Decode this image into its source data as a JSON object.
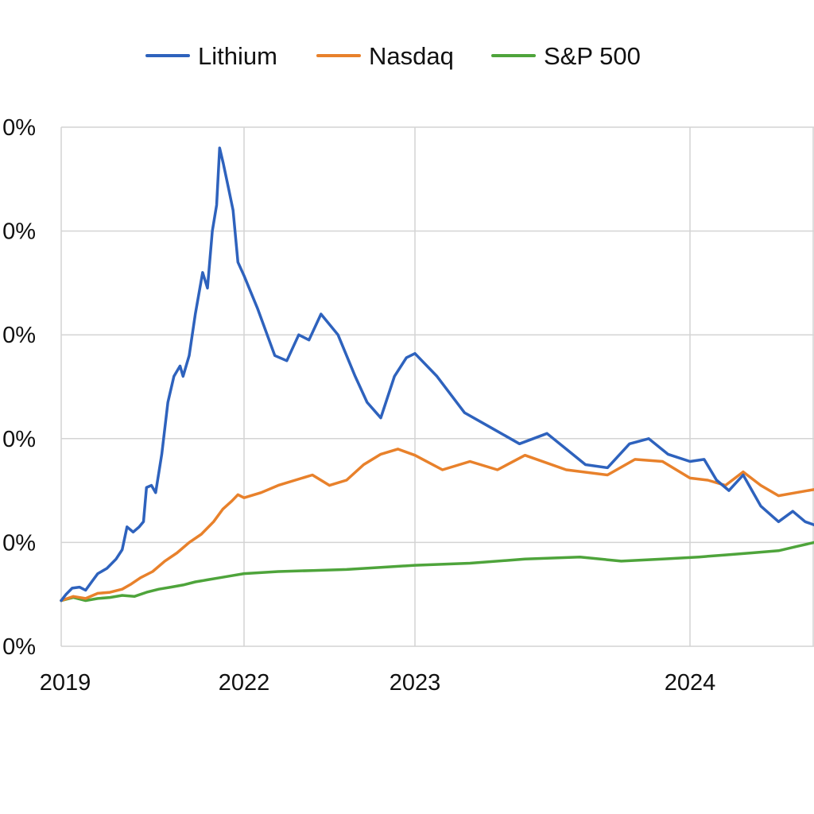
{
  "chart_data": {
    "type": "line",
    "title": "",
    "xlabel": "",
    "ylabel": "",
    "x_ticks": [
      "2019",
      "2022",
      "2023",
      "2024"
    ],
    "y_ticks": [
      "0%",
      "0%",
      "0%",
      "0%",
      "0%",
      "0%"
    ],
    "y_tick_values": [
      0,
      1,
      2,
      3,
      4,
      5
    ],
    "ylim": [
      0,
      5
    ],
    "xlim": [
      2019,
      2024.7
    ],
    "grid": true,
    "legend_position": "top-center",
    "series": [
      {
        "name": "Lithium",
        "color": "#2e62bd",
        "points": [
          [
            2019.0,
            0.44
          ],
          [
            2019.08,
            0.5
          ],
          [
            2019.18,
            0.56
          ],
          [
            2019.3,
            0.57
          ],
          [
            2019.4,
            0.54
          ],
          [
            2019.5,
            0.62
          ],
          [
            2019.6,
            0.7
          ],
          [
            2019.75,
            0.75
          ],
          [
            2019.9,
            0.84
          ],
          [
            2020.0,
            0.93
          ],
          [
            2020.08,
            1.15
          ],
          [
            2020.18,
            1.1
          ],
          [
            2020.28,
            1.15
          ],
          [
            2020.35,
            1.2
          ],
          [
            2020.4,
            1.53
          ],
          [
            2020.48,
            1.55
          ],
          [
            2020.55,
            1.48
          ],
          [
            2020.65,
            1.85
          ],
          [
            2020.75,
            2.35
          ],
          [
            2020.85,
            2.6
          ],
          [
            2020.95,
            2.7
          ],
          [
            2021.0,
            2.6
          ],
          [
            2021.1,
            2.8
          ],
          [
            2021.2,
            3.2
          ],
          [
            2021.32,
            3.6
          ],
          [
            2021.4,
            3.45
          ],
          [
            2021.48,
            4.0
          ],
          [
            2021.55,
            4.25
          ],
          [
            2021.6,
            4.8
          ],
          [
            2021.66,
            4.65
          ],
          [
            2021.75,
            4.4
          ],
          [
            2021.82,
            4.2
          ],
          [
            2021.9,
            3.7
          ],
          [
            2022.0,
            3.57
          ],
          [
            2022.08,
            3.25
          ],
          [
            2022.18,
            2.8
          ],
          [
            2022.25,
            2.75
          ],
          [
            2022.32,
            3.0
          ],
          [
            2022.38,
            2.95
          ],
          [
            2022.45,
            3.2
          ],
          [
            2022.55,
            3.0
          ],
          [
            2022.65,
            2.6
          ],
          [
            2022.72,
            2.35
          ],
          [
            2022.8,
            2.2
          ],
          [
            2022.88,
            2.6
          ],
          [
            2022.95,
            2.78
          ],
          [
            2023.0,
            2.82
          ],
          [
            2023.08,
            2.6
          ],
          [
            2023.18,
            2.25
          ],
          [
            2023.28,
            2.1
          ],
          [
            2023.38,
            1.95
          ],
          [
            2023.48,
            2.05
          ],
          [
            2023.55,
            1.9
          ],
          [
            2023.62,
            1.75
          ],
          [
            2023.7,
            1.72
          ],
          [
            2023.78,
            1.95
          ],
          [
            2023.85,
            2.0
          ],
          [
            2023.92,
            1.85
          ],
          [
            2024.0,
            1.78
          ],
          [
            2024.08,
            1.8
          ],
          [
            2024.15,
            1.6
          ],
          [
            2024.22,
            1.5
          ],
          [
            2024.3,
            1.65
          ],
          [
            2024.4,
            1.35
          ],
          [
            2024.5,
            1.2
          ],
          [
            2024.58,
            1.3
          ],
          [
            2024.65,
            1.2
          ],
          [
            2024.7,
            1.17
          ]
        ]
      },
      {
        "name": "Nasdaq",
        "color": "#e8812b",
        "points": [
          [
            2019.0,
            0.44
          ],
          [
            2019.2,
            0.48
          ],
          [
            2019.4,
            0.46
          ],
          [
            2019.6,
            0.51
          ],
          [
            2019.8,
            0.52
          ],
          [
            2020.0,
            0.55
          ],
          [
            2020.15,
            0.6
          ],
          [
            2020.3,
            0.66
          ],
          [
            2020.5,
            0.72
          ],
          [
            2020.7,
            0.82
          ],
          [
            2020.9,
            0.9
          ],
          [
            2021.1,
            1.0
          ],
          [
            2021.3,
            1.08
          ],
          [
            2021.5,
            1.2
          ],
          [
            2021.65,
            1.32
          ],
          [
            2021.8,
            1.4
          ],
          [
            2021.9,
            1.46
          ],
          [
            2022.0,
            1.43
          ],
          [
            2022.1,
            1.48
          ],
          [
            2022.2,
            1.55
          ],
          [
            2022.3,
            1.6
          ],
          [
            2022.4,
            1.65
          ],
          [
            2022.5,
            1.55
          ],
          [
            2022.6,
            1.6
          ],
          [
            2022.7,
            1.75
          ],
          [
            2022.8,
            1.85
          ],
          [
            2022.9,
            1.9
          ],
          [
            2023.0,
            1.84
          ],
          [
            2023.1,
            1.7
          ],
          [
            2023.2,
            1.78
          ],
          [
            2023.3,
            1.7
          ],
          [
            2023.4,
            1.84
          ],
          [
            2023.55,
            1.7
          ],
          [
            2023.7,
            1.65
          ],
          [
            2023.8,
            1.8
          ],
          [
            2023.9,
            1.78
          ],
          [
            2024.0,
            1.62
          ],
          [
            2024.1,
            1.6
          ],
          [
            2024.2,
            1.55
          ],
          [
            2024.3,
            1.68
          ],
          [
            2024.4,
            1.55
          ],
          [
            2024.5,
            1.45
          ],
          [
            2024.6,
            1.48
          ],
          [
            2024.7,
            1.51
          ]
        ]
      },
      {
        "name": "S&P 500",
        "color": "#4ea43b",
        "points": [
          [
            2019.0,
            0.44
          ],
          [
            2019.2,
            0.47
          ],
          [
            2019.4,
            0.44
          ],
          [
            2019.6,
            0.46
          ],
          [
            2019.8,
            0.47
          ],
          [
            2020.0,
            0.49
          ],
          [
            2020.2,
            0.48
          ],
          [
            2020.4,
            0.52
          ],
          [
            2020.6,
            0.55
          ],
          [
            2020.8,
            0.57
          ],
          [
            2021.0,
            0.59
          ],
          [
            2021.2,
            0.62
          ],
          [
            2021.4,
            0.64
          ],
          [
            2021.6,
            0.66
          ],
          [
            2021.8,
            0.68
          ],
          [
            2022.0,
            0.7
          ],
          [
            2022.2,
            0.72
          ],
          [
            2022.4,
            0.73
          ],
          [
            2022.6,
            0.74
          ],
          [
            2022.8,
            0.76
          ],
          [
            2023.0,
            0.78
          ],
          [
            2023.2,
            0.8
          ],
          [
            2023.4,
            0.84
          ],
          [
            2023.6,
            0.86
          ],
          [
            2023.75,
            0.82
          ],
          [
            2023.9,
            0.84
          ],
          [
            2024.05,
            0.86
          ],
          [
            2024.2,
            0.88
          ],
          [
            2024.35,
            0.9
          ],
          [
            2024.5,
            0.92
          ],
          [
            2024.6,
            0.96
          ],
          [
            2024.7,
            1.0
          ]
        ]
      }
    ]
  }
}
